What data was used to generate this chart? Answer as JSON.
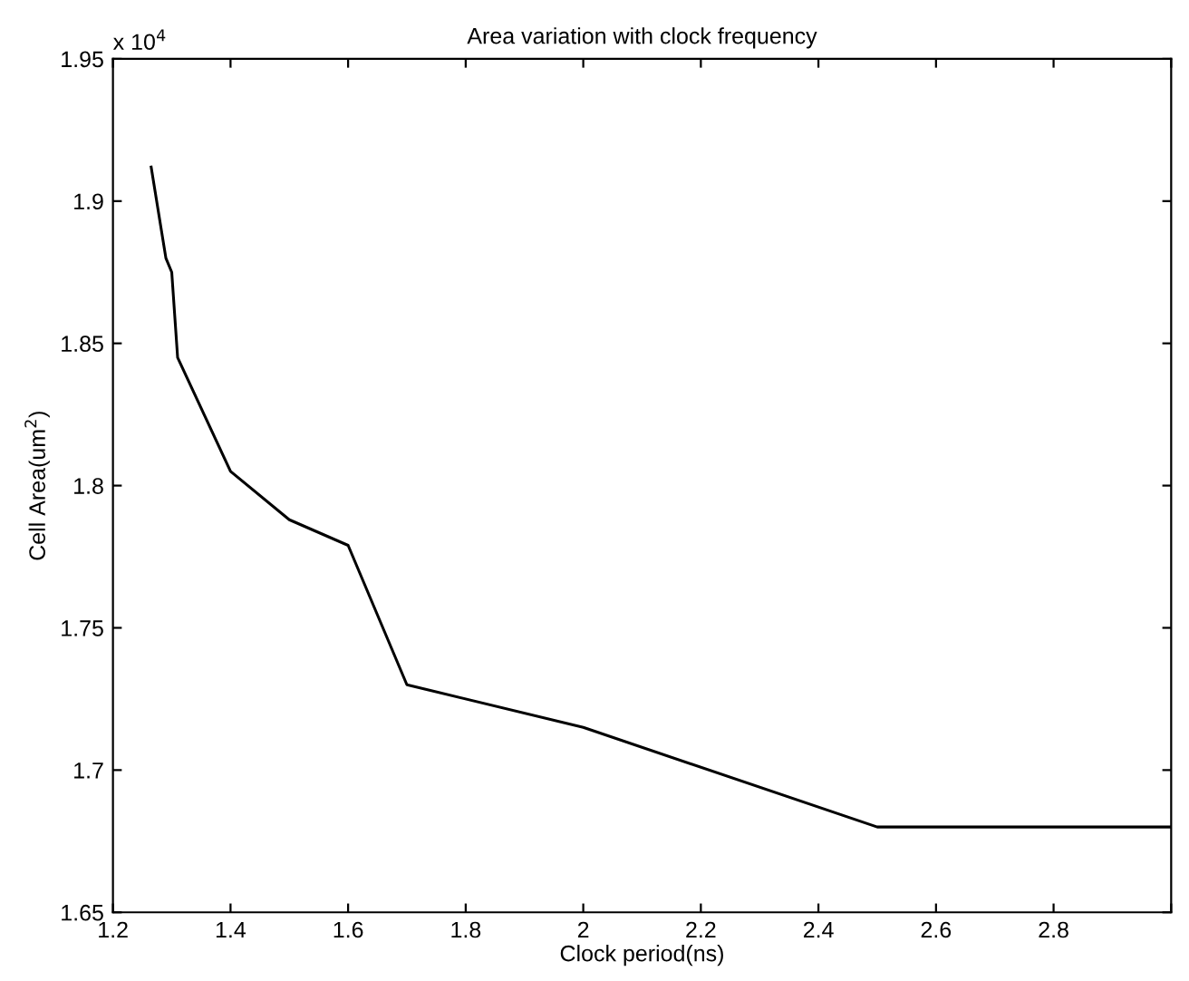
{
  "chart_data": {
    "type": "line",
    "title": "Area variation with clock frequency",
    "xlabel": "Clock period(ns)",
    "ylabel": "Cell Area(um$^{2}$)",
    "annotations": [
      "x 10$^{4}$"
    ],
    "x": [
      1.265,
      1.29,
      1.3,
      1.31,
      1.4,
      1.5,
      1.6,
      1.7,
      2.0,
      2.5,
      3.0
    ],
    "series": [
      {
        "color": "#000000",
        "values": [
          1.912,
          1.88,
          1.875,
          1.845,
          1.805,
          1.788,
          1.779,
          1.73,
          1.715,
          1.68,
          1.68
        ]
      }
    ],
    "xlim": [
      1.2,
      3.0
    ],
    "xticks": [
      1.2,
      1.4,
      1.6,
      1.8,
      2,
      2.2,
      2.4,
      2.6,
      2.8,
      {
        "value": 3.0,
        "label": null
      }
    ],
    "ylim": [
      1.65,
      1.95
    ],
    "yticks": [
      1.65,
      1.7,
      1.75,
      1.8,
      1.85,
      1.9,
      1.95
    ],
    "grid": false,
    "legend": false,
    "marker": "none",
    "line_style": "solid"
  }
}
